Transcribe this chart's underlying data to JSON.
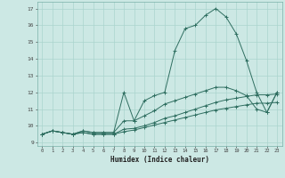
{
  "xlabel": "Humidex (Indice chaleur)",
  "ylabel": "",
  "bg_color": "#cce8e4",
  "line_color": "#2e6e60",
  "grid_color": "#aad4ce",
  "xlim": [
    -0.5,
    23.5
  ],
  "ylim": [
    8.8,
    17.4
  ],
  "xticks": [
    0,
    1,
    2,
    3,
    4,
    5,
    6,
    7,
    8,
    9,
    10,
    11,
    12,
    13,
    14,
    15,
    16,
    17,
    18,
    19,
    20,
    21,
    22,
    23
  ],
  "yticks": [
    9,
    10,
    11,
    12,
    13,
    14,
    15,
    16,
    17
  ],
  "series1_x": [
    0,
    1,
    2,
    3,
    4,
    5,
    6,
    7,
    8,
    9,
    10,
    11,
    12,
    13,
    14,
    15,
    16,
    17,
    18,
    19,
    20,
    21,
    22,
    23
  ],
  "series1_y": [
    9.5,
    9.7,
    9.6,
    9.5,
    9.7,
    9.6,
    9.6,
    9.6,
    12.0,
    10.3,
    11.5,
    11.8,
    12.0,
    14.5,
    15.8,
    16.0,
    16.6,
    17.0,
    16.5,
    15.5,
    13.9,
    12.0,
    10.8,
    12.0
  ],
  "series2_x": [
    0,
    1,
    2,
    3,
    4,
    5,
    6,
    7,
    8,
    9,
    10,
    11,
    12,
    13,
    14,
    15,
    16,
    17,
    18,
    19,
    20,
    21,
    22,
    23
  ],
  "series2_y": [
    9.5,
    9.7,
    9.6,
    9.5,
    9.7,
    9.6,
    9.6,
    9.6,
    10.3,
    10.3,
    10.6,
    10.9,
    11.3,
    11.5,
    11.7,
    11.9,
    12.1,
    12.3,
    12.3,
    12.1,
    11.8,
    11.0,
    10.8,
    12.0
  ],
  "series3_x": [
    0,
    1,
    2,
    3,
    4,
    5,
    6,
    7,
    8,
    9,
    10,
    11,
    12,
    13,
    14,
    15,
    16,
    17,
    18,
    19,
    20,
    21,
    22,
    23
  ],
  "series3_y": [
    9.5,
    9.7,
    9.6,
    9.5,
    9.6,
    9.5,
    9.5,
    9.5,
    9.8,
    9.85,
    10.0,
    10.2,
    10.45,
    10.6,
    10.8,
    11.0,
    11.2,
    11.4,
    11.55,
    11.65,
    11.75,
    11.85,
    11.85,
    11.9
  ],
  "series4_x": [
    0,
    1,
    2,
    3,
    4,
    5,
    6,
    7,
    8,
    9,
    10,
    11,
    12,
    13,
    14,
    15,
    16,
    17,
    18,
    19,
    20,
    21,
    22,
    23
  ],
  "series4_y": [
    9.5,
    9.7,
    9.6,
    9.5,
    9.6,
    9.5,
    9.5,
    9.5,
    9.65,
    9.75,
    9.9,
    10.05,
    10.2,
    10.35,
    10.5,
    10.65,
    10.8,
    10.95,
    11.05,
    11.15,
    11.25,
    11.35,
    11.35,
    11.4
  ]
}
